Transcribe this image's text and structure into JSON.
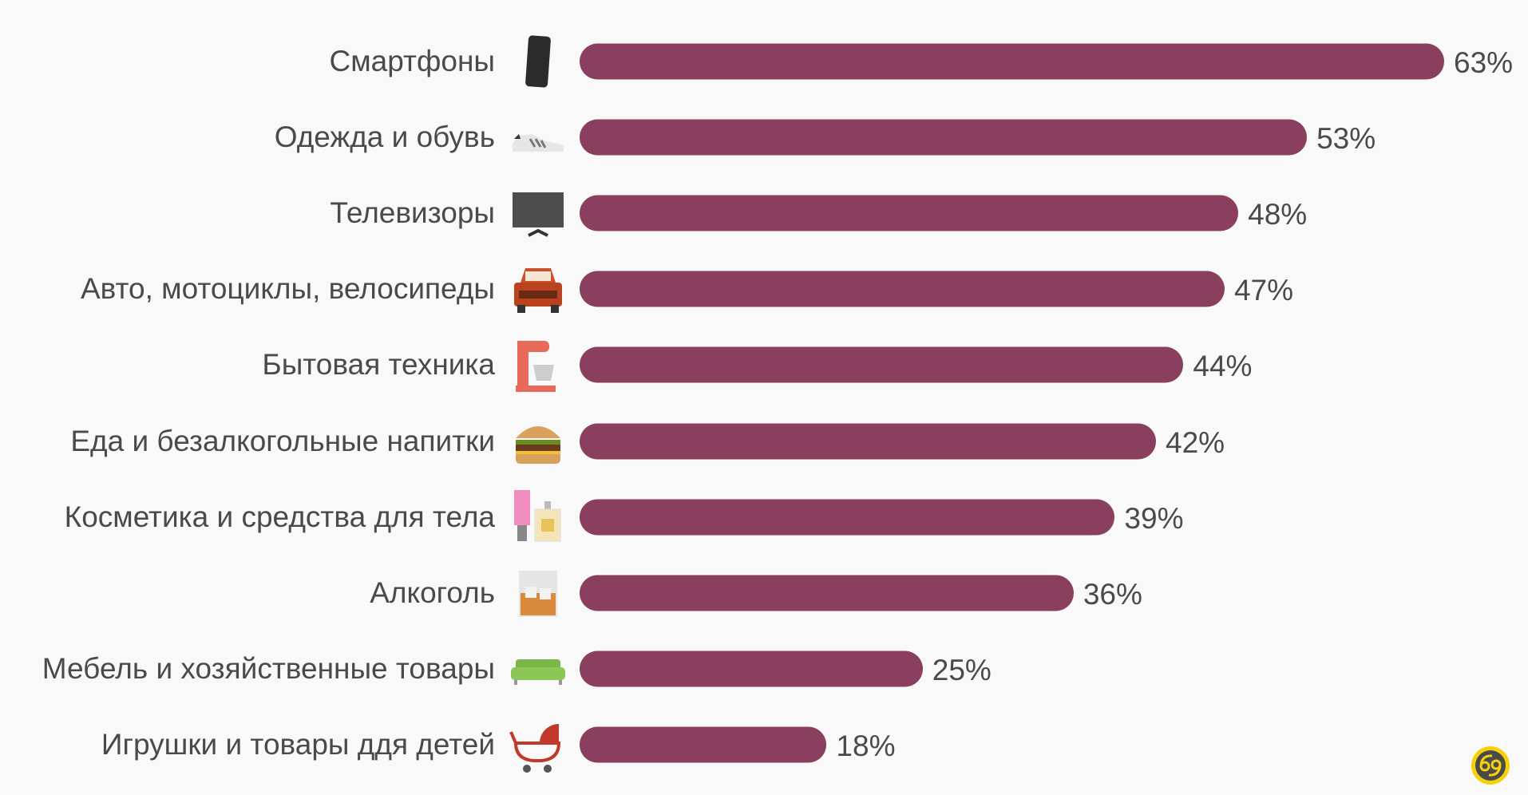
{
  "chart_data": {
    "type": "bar",
    "orientation": "horizontal",
    "title": "",
    "xlabel": "",
    "ylabel": "",
    "xlim": [
      0,
      63
    ],
    "grid": false,
    "bar_color": "#8b3f5e",
    "categories": [
      "Смартфоны",
      "Одежда и обувь",
      "Телевизоры",
      "Авто, мотоциклы, велосипеды",
      "Бытовая техника",
      "Еда и безалкогольные напитки",
      "Косметика и средства для тела",
      "Алкоголь",
      "Мебель и хозяйственные товары",
      "Игрушки и товары ддя детей"
    ],
    "values": [
      63,
      53,
      48,
      47,
      44,
      42,
      39,
      36,
      25,
      18
    ],
    "value_labels": [
      "63%",
      "53%",
      "48%",
      "47%",
      "44%",
      "42%",
      "39%",
      "36%",
      "25%",
      "18%"
    ],
    "icons": [
      "smartphone-icon",
      "sneaker-icon",
      "tv-icon",
      "car-icon",
      "mixer-icon",
      "burger-icon",
      "cosmetics-icon",
      "whiskey-glass-icon",
      "sofa-icon",
      "stroller-icon"
    ]
  }
}
